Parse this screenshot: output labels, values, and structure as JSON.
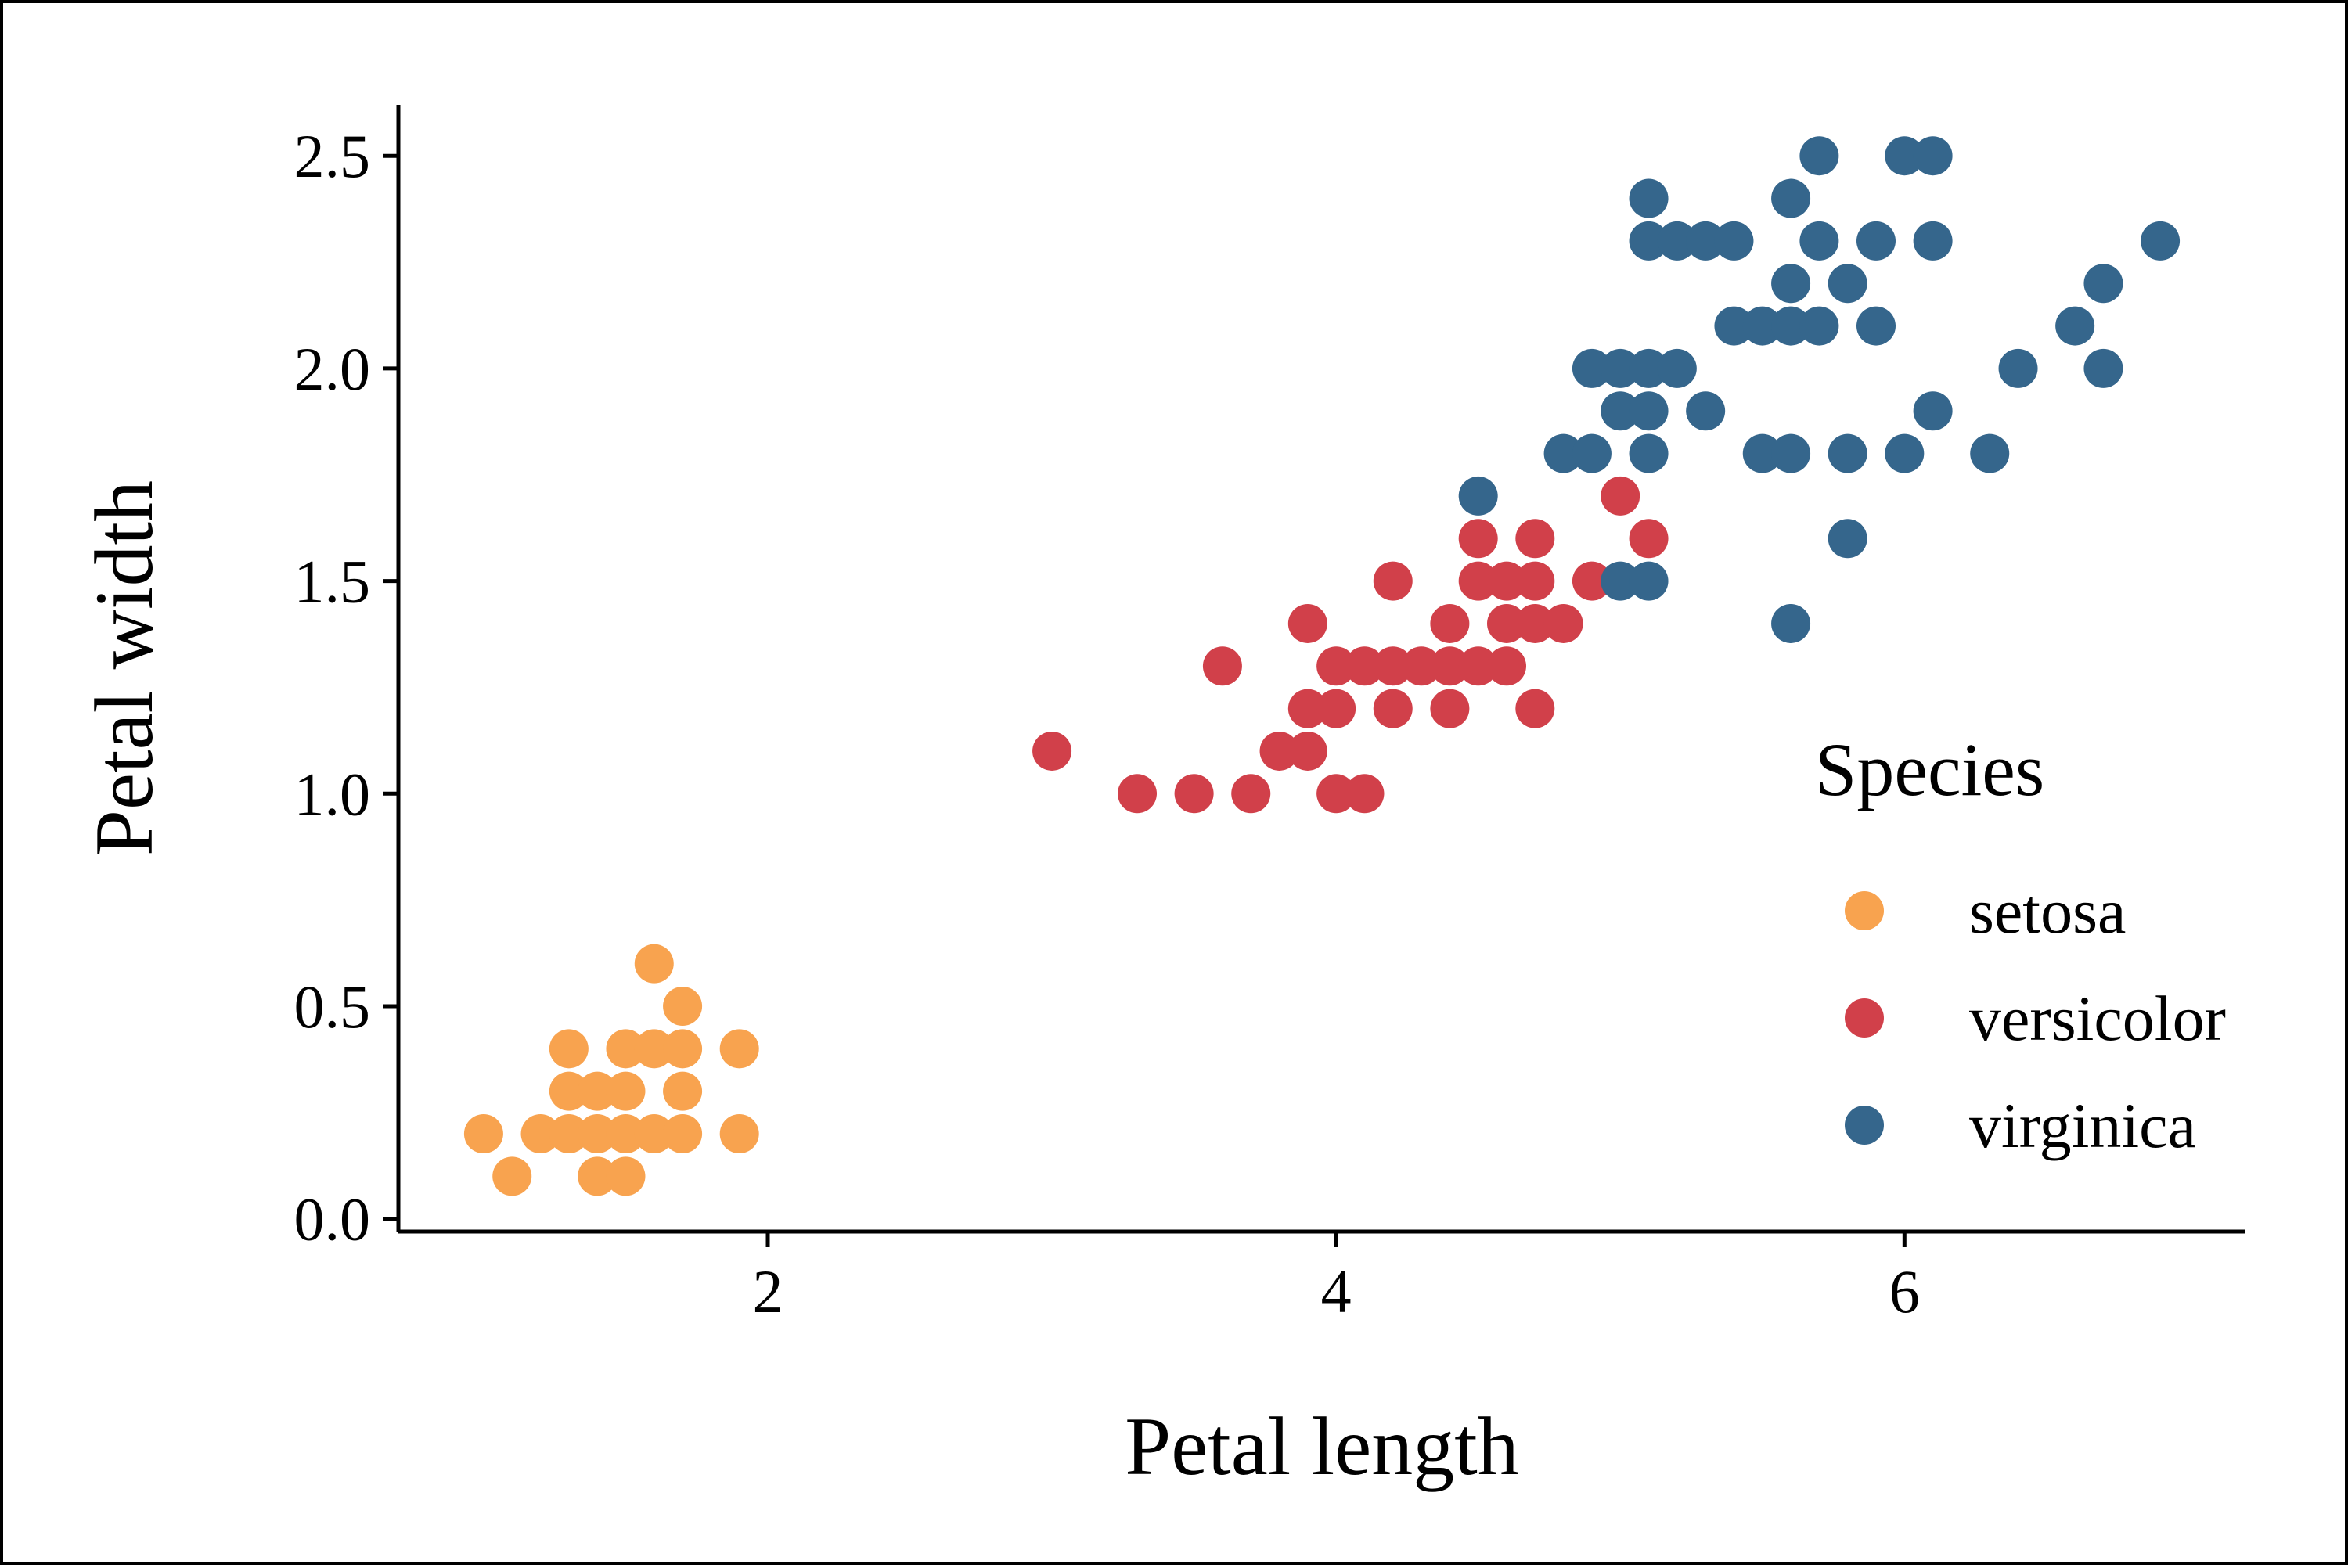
{
  "chart_data": {
    "type": "scatter",
    "title": "",
    "xlabel": "Petal length",
    "ylabel": "Petal width",
    "xlim": [
      0.7,
      7.2
    ],
    "ylim": [
      -0.03,
      2.62
    ],
    "x_ticks": [
      2,
      4,
      6
    ],
    "x_tick_labels": [
      "2",
      "4",
      "6"
    ],
    "y_ticks": [
      0,
      0.5,
      1,
      1.5,
      2,
      2.5
    ],
    "y_tick_labels": [
      "0.0",
      "0.5",
      "1.0",
      "1.5",
      "2.0",
      "2.5"
    ],
    "grid": false,
    "legend": {
      "title": "Species",
      "position": "right"
    },
    "series": [
      {
        "name": "setosa",
        "color": "#F8A34F",
        "points": [
          [
            1.0,
            0.2
          ],
          [
            1.1,
            0.1
          ],
          [
            1.2,
            0.2
          ],
          [
            1.3,
            0.2
          ],
          [
            1.3,
            0.3
          ],
          [
            1.3,
            0.4
          ],
          [
            1.4,
            0.1
          ],
          [
            1.4,
            0.2
          ],
          [
            1.4,
            0.3
          ],
          [
            1.5,
            0.1
          ],
          [
            1.5,
            0.2
          ],
          [
            1.5,
            0.3
          ],
          [
            1.5,
            0.4
          ],
          [
            1.6,
            0.2
          ],
          [
            1.6,
            0.4
          ],
          [
            1.6,
            0.6
          ],
          [
            1.7,
            0.2
          ],
          [
            1.7,
            0.3
          ],
          [
            1.7,
            0.4
          ],
          [
            1.7,
            0.5
          ],
          [
            1.9,
            0.2
          ],
          [
            1.9,
            0.4
          ]
        ]
      },
      {
        "name": "versicolor",
        "color": "#D1404A",
        "points": [
          [
            3.0,
            1.1
          ],
          [
            3.3,
            1.0
          ],
          [
            3.5,
            1.0
          ],
          [
            3.6,
            1.3
          ],
          [
            3.7,
            1.0
          ],
          [
            3.8,
            1.1
          ],
          [
            3.9,
            1.1
          ],
          [
            3.9,
            1.2
          ],
          [
            3.9,
            1.4
          ],
          [
            4.0,
            1.0
          ],
          [
            4.0,
            1.2
          ],
          [
            4.0,
            1.3
          ],
          [
            4.1,
            1.0
          ],
          [
            4.1,
            1.3
          ],
          [
            4.2,
            1.2
          ],
          [
            4.2,
            1.3
          ],
          [
            4.2,
            1.5
          ],
          [
            4.3,
            1.3
          ],
          [
            4.4,
            1.2
          ],
          [
            4.4,
            1.3
          ],
          [
            4.4,
            1.4
          ],
          [
            4.5,
            1.3
          ],
          [
            4.5,
            1.5
          ],
          [
            4.5,
            1.6
          ],
          [
            4.6,
            1.3
          ],
          [
            4.6,
            1.4
          ],
          [
            4.6,
            1.5
          ],
          [
            4.7,
            1.2
          ],
          [
            4.7,
            1.4
          ],
          [
            4.7,
            1.5
          ],
          [
            4.7,
            1.6
          ],
          [
            4.8,
            1.4
          ],
          [
            4.9,
            1.5
          ],
          [
            5.0,
            1.7
          ],
          [
            5.1,
            1.6
          ]
        ]
      },
      {
        "name": "virginica",
        "color": "#35668C",
        "points": [
          [
            4.5,
            1.7
          ],
          [
            4.8,
            1.8
          ],
          [
            4.9,
            1.8
          ],
          [
            4.9,
            2.0
          ],
          [
            5.0,
            1.5
          ],
          [
            5.0,
            1.9
          ],
          [
            5.0,
            2.0
          ],
          [
            5.1,
            1.5
          ],
          [
            5.1,
            1.8
          ],
          [
            5.1,
            1.9
          ],
          [
            5.1,
            2.0
          ],
          [
            5.1,
            2.3
          ],
          [
            5.1,
            2.4
          ],
          [
            5.2,
            2.0
          ],
          [
            5.2,
            2.3
          ],
          [
            5.3,
            1.9
          ],
          [
            5.3,
            2.3
          ],
          [
            5.4,
            2.1
          ],
          [
            5.4,
            2.3
          ],
          [
            5.5,
            1.8
          ],
          [
            5.5,
            2.1
          ],
          [
            5.6,
            1.4
          ],
          [
            5.6,
            1.8
          ],
          [
            5.6,
            2.1
          ],
          [
            5.6,
            2.2
          ],
          [
            5.6,
            2.4
          ],
          [
            5.7,
            2.1
          ],
          [
            5.7,
            2.3
          ],
          [
            5.7,
            2.5
          ],
          [
            5.8,
            1.6
          ],
          [
            5.8,
            1.8
          ],
          [
            5.8,
            2.2
          ],
          [
            5.9,
            2.1
          ],
          [
            5.9,
            2.3
          ],
          [
            6.0,
            1.8
          ],
          [
            6.0,
            2.5
          ],
          [
            6.1,
            1.9
          ],
          [
            6.1,
            2.3
          ],
          [
            6.1,
            2.5
          ],
          [
            6.3,
            1.8
          ],
          [
            6.4,
            2.0
          ],
          [
            6.6,
            2.1
          ],
          [
            6.7,
            2.0
          ],
          [
            6.7,
            2.2
          ],
          [
            6.9,
            2.3
          ]
        ]
      }
    ]
  }
}
